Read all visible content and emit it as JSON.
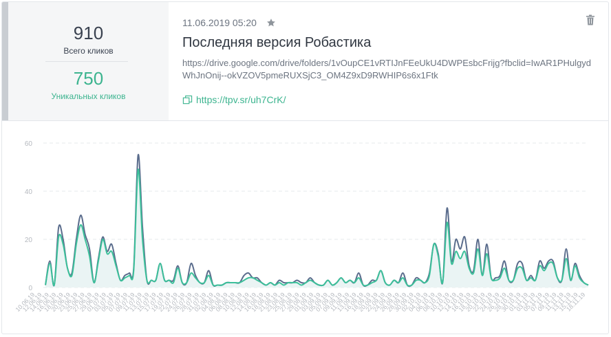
{
  "stats": {
    "total_value": "910",
    "total_label": "Всего кликов",
    "unique_value": "750",
    "unique_label": "Уникальных кликов"
  },
  "link": {
    "date": "11.06.2019 05:20",
    "title": "Последняя версия Робастика",
    "long_url": "https://drive.google.com/drive/folders/1vOupCE1vRTIJnFEeUkU4DWPEsbcFrijg?fbclid=IwAR1PHulgydWhJnOnij--okVZOV5pmeRUXSjC3_OM4Z9xD9RWHIP6s6x1Ftk",
    "short_url": "https://tpv.sr/uh7CrK/"
  },
  "colors": {
    "total": "#5a6c8c",
    "unique": "#3cc09a",
    "unique_fill": "#eaf4f4",
    "grid": "#e6e8eb",
    "tick": "#b5b9bf"
  },
  "icons": {
    "star": "star-icon",
    "copy": "copy-icon",
    "trash": "trash-icon"
  },
  "chart_data": {
    "type": "line",
    "ylim": [
      0,
      60
    ],
    "yticks": [
      0,
      20,
      40,
      60
    ],
    "grid": true,
    "xtick_labels": [
      "10.06.19",
      "12.06.19",
      "14.06.19",
      "16.06.19",
      "18.06.19",
      "20.06.19",
      "23.06.19",
      "25.06.19",
      "27.06.19",
      "29.06.19",
      "01.07.19",
      "03.07.19",
      "05.07.19",
      "07.07.19",
      "09.07.19",
      "11.07.19",
      "13.07.19",
      "15.07.19",
      "17.07.19",
      "19.07.19",
      "22.07.19",
      "24.07.19",
      "26.07.19",
      "28.07.19",
      "31.07.19",
      "02.08.19",
      "04.08.19",
      "06.08.19",
      "08.08.19",
      "10.08.19",
      "12.08.19",
      "14.08.19",
      "16.08.19",
      "18.08.19",
      "21.08.19",
      "23.08.19",
      "25.08.19",
      "27.08.19",
      "29.08.19",
      "01.09.19",
      "03.09.19",
      "05.09.19",
      "07.09.19",
      "09.09.19",
      "11.09.19",
      "13.09.19",
      "16.09.19",
      "18.09.19",
      "20.09.19",
      "22.09.19",
      "24.09.19",
      "26.09.19",
      "28.09.19",
      "30.09.19",
      "02.10.19",
      "04.10.19",
      "06.10.19",
      "08.10.19",
      "10.10.19",
      "12.10.19",
      "14.10.19",
      "16.10.19",
      "18.10.19",
      "20.10.19",
      "22.10.19",
      "24.10.19",
      "26.10.19",
      "28.10.19",
      "30.10.19",
      "01.11.19",
      "03.11.19",
      "05.11.19",
      "07.11.19",
      "09.11.19",
      "11.11.19",
      "13.11.19",
      "15.11.19",
      "18.11.19"
    ],
    "series": [
      {
        "values": [
          1,
          11,
          1,
          25,
          20,
          8,
          6,
          20,
          30,
          22,
          16,
          2,
          12,
          21,
          15,
          18,
          10,
          3,
          5,
          6,
          8,
          55,
          25,
          3,
          3,
          3,
          10,
          3,
          3,
          3,
          9,
          2,
          2,
          10,
          5,
          2,
          2,
          7,
          1,
          1,
          1,
          2,
          2,
          2,
          2,
          5,
          6,
          4,
          4,
          2,
          1,
          2,
          1,
          3,
          2,
          2,
          2,
          3,
          2,
          2,
          4,
          2,
          1,
          1,
          3,
          1,
          2,
          4,
          2,
          3,
          2,
          6,
          1,
          1,
          3,
          3,
          7,
          2,
          1,
          3,
          2,
          6,
          1,
          1,
          4,
          3,
          2,
          6,
          18,
          14,
          2,
          33,
          11,
          20,
          16,
          21,
          9,
          7,
          20,
          5,
          18,
          4,
          4,
          5,
          11,
          3,
          3,
          10,
          10,
          3,
          5,
          3,
          11,
          8,
          11,
          11,
          4,
          3,
          16,
          3,
          10,
          5,
          2,
          1
        ]
      },
      {
        "values": [
          1,
          10,
          1,
          21,
          18,
          8,
          5,
          18,
          26,
          20,
          13,
          2,
          11,
          20,
          14,
          15,
          9,
          3,
          4,
          5,
          7,
          49,
          20,
          3,
          3,
          3,
          10,
          3,
          3,
          2,
          8,
          2,
          2,
          6,
          4,
          2,
          2,
          5,
          1,
          1,
          1,
          2,
          2,
          2,
          2,
          3,
          4,
          4,
          3,
          2,
          1,
          2,
          1,
          2,
          1,
          2,
          2,
          2,
          1,
          2,
          3,
          2,
          1,
          1,
          3,
          1,
          2,
          4,
          2,
          3,
          2,
          4,
          1,
          1,
          2,
          3,
          7,
          2,
          1,
          3,
          2,
          4,
          1,
          1,
          3,
          3,
          2,
          5,
          18,
          13,
          2,
          27,
          10,
          15,
          12,
          15,
          8,
          6,
          16,
          5,
          14,
          4,
          3,
          4,
          8,
          3,
          3,
          8,
          8,
          3,
          4,
          3,
          9,
          7,
          10,
          10,
          4,
          3,
          12,
          3,
          9,
          4,
          2,
          1
        ]
      }
    ]
  }
}
